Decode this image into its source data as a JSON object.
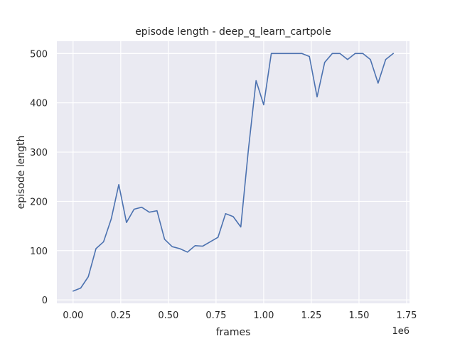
{
  "chart_data": {
    "type": "line",
    "title": "episode length - deep_q_learn_cartpole",
    "xlabel": "frames",
    "ylabel": "episode length",
    "x_offset_label": "1e6",
    "xlim": [
      -0.085,
      1.765
    ],
    "ylim": [
      -7,
      525
    ],
    "xticks": [
      0.0,
      0.25,
      0.5,
      0.75,
      1.0,
      1.25,
      1.5,
      1.75
    ],
    "xtick_labels": [
      "0.00",
      "0.25",
      "0.50",
      "0.75",
      "1.00",
      "1.25",
      "1.50",
      "1.75"
    ],
    "yticks": [
      0,
      100,
      200,
      300,
      400,
      500
    ],
    "ytick_labels": [
      "0",
      "100",
      "200",
      "300",
      "400",
      "500"
    ],
    "grid": true,
    "background": "#eaeaf2",
    "series": [
      {
        "color": "#4c72b0",
        "x": [
          0.0,
          0.04,
          0.08,
          0.12,
          0.16,
          0.2,
          0.24,
          0.28,
          0.32,
          0.36,
          0.4,
          0.44,
          0.48,
          0.52,
          0.56,
          0.6,
          0.64,
          0.68,
          0.72,
          0.76,
          0.8,
          0.84,
          0.88,
          0.92,
          0.96,
          1.0,
          1.04,
          1.08,
          1.12,
          1.16,
          1.2,
          1.24,
          1.28,
          1.32,
          1.36,
          1.4,
          1.44,
          1.48,
          1.52,
          1.56,
          1.6,
          1.64,
          1.68
        ],
        "values": [
          18,
          24,
          47,
          104,
          118,
          164,
          234,
          157,
          184,
          188,
          178,
          181,
          123,
          108,
          104,
          97,
          110,
          109,
          118,
          127,
          175,
          169,
          148,
          305,
          445,
          396,
          500,
          500,
          500,
          500,
          500,
          494,
          412,
          482,
          500,
          500,
          488,
          500,
          500,
          488,
          440,
          488,
          500
        ]
      }
    ]
  }
}
